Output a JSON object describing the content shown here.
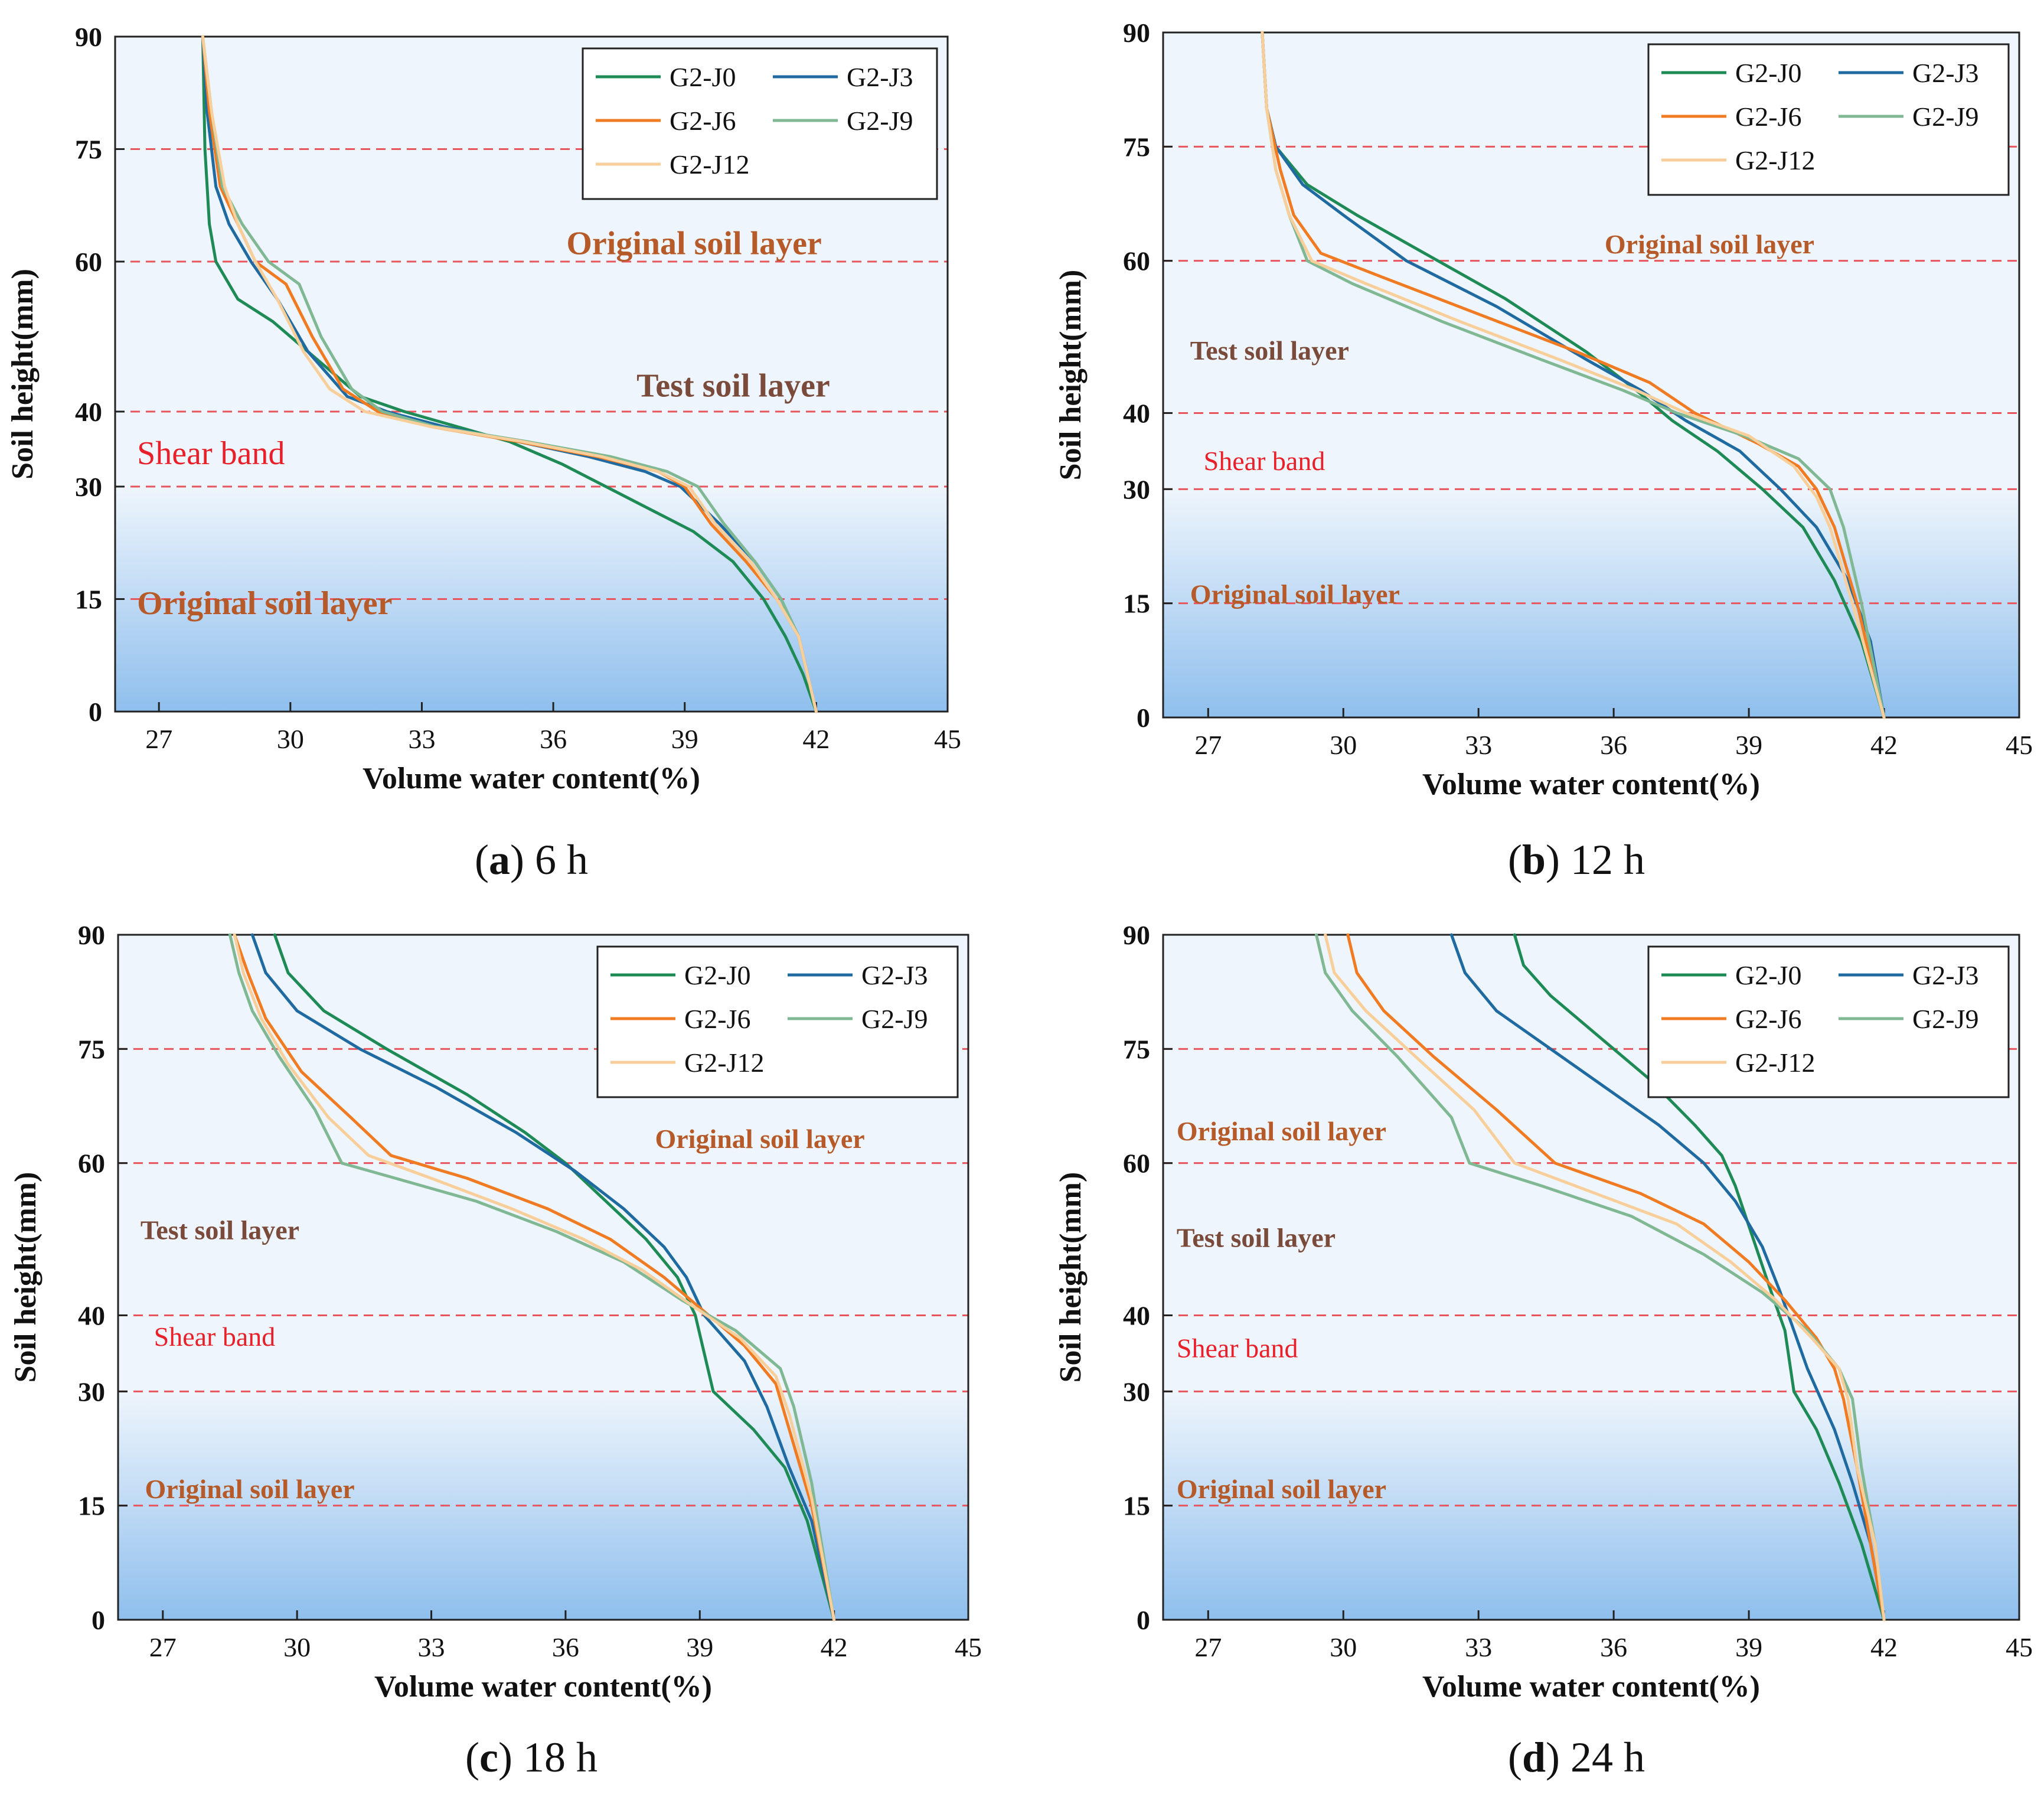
{
  "colors": {
    "G2-J0": "#1e8a56",
    "G2-J3": "#1f6aa0",
    "G2-J6": "#f07b22",
    "G2-J9": "#80b894",
    "G2-J12": "#f8cf9a",
    "band_top": "#eef5fc",
    "band_bottom": "#8fbfed",
    "guide_line": "#e8555c",
    "annotation_soil": "#b65a2a",
    "annotation_test": "#7a4a3a",
    "annotation_shear": "#e8202a"
  },
  "chart_data": [
    {
      "type": "line",
      "caption_letter": "a",
      "caption_text": " 6 h",
      "xlabel": "Volume water content(%)",
      "ylabel": "Soil height(mm)",
      "xlim": [
        26,
        45
      ],
      "ylim": [
        0,
        90
      ],
      "xticks": [
        27,
        30,
        33,
        36,
        39,
        42,
        45
      ],
      "yticks": [
        0,
        15,
        30,
        40,
        60,
        75,
        90
      ],
      "guide_lines_y": [
        15,
        30,
        40,
        60,
        75,
        90
      ],
      "legend": "top-right",
      "annotations": [
        {
          "text": "Original soil layer",
          "x": 36.3,
          "y": 61,
          "style": "soil",
          "size": "large"
        },
        {
          "text": "Test soil layer",
          "x": 37.9,
          "y": 42,
          "style": "test",
          "size": "large"
        },
        {
          "text": "Shear band",
          "x": 26.5,
          "y": 33,
          "style": "shear",
          "size": "large"
        },
        {
          "text": "Original soil layer",
          "x": 26.5,
          "y": 13,
          "style": "soil",
          "size": "large"
        }
      ],
      "series": [
        {
          "name": "G2-J0",
          "x": [
            28.0,
            28.05,
            28.15,
            28.3,
            28.8,
            29.6,
            30.6,
            31.6,
            32.6,
            33.8,
            35.0,
            36.2,
            37.2,
            38.2,
            39.2,
            40.1,
            40.8,
            41.3,
            41.7,
            42.0
          ],
          "y": [
            90,
            75,
            65,
            60,
            55,
            52,
            47,
            42,
            40,
            38,
            36,
            33,
            30,
            27,
            24,
            20,
            15,
            10,
            5,
            0
          ]
        },
        {
          "name": "G2-J3",
          "x": [
            28.0,
            28.1,
            28.3,
            28.6,
            29.1,
            29.7,
            30.4,
            31.3,
            32.2,
            33.5,
            35.2,
            36.8,
            38.1,
            38.9,
            39.8,
            40.6,
            41.2,
            41.6,
            42.0
          ],
          "y": [
            90,
            80,
            70,
            65,
            60,
            55,
            48,
            42,
            40,
            38,
            36,
            34,
            32,
            30,
            25,
            20,
            15,
            10,
            0
          ]
        },
        {
          "name": "G2-J6",
          "x": [
            28.0,
            28.15,
            28.4,
            28.8,
            29.2,
            29.9,
            30.5,
            31.2,
            32.0,
            33.2,
            35.2,
            37.0,
            38.4,
            39.0,
            39.6,
            40.4,
            41.1,
            41.6,
            42.0
          ],
          "y": [
            90,
            80,
            70,
            65,
            60,
            57,
            50,
            43,
            40,
            38,
            36,
            34,
            32,
            30,
            25,
            20,
            15,
            10,
            0
          ]
        },
        {
          "name": "G2-J9",
          "x": [
            28.0,
            28.2,
            28.45,
            28.9,
            29.5,
            30.2,
            30.7,
            31.4,
            32.1,
            33.3,
            35.4,
            37.3,
            38.6,
            39.3,
            39.9,
            40.6,
            41.2,
            41.6,
            42.0
          ],
          "y": [
            90,
            80,
            70,
            65,
            60,
            57,
            50,
            43,
            40,
            38,
            36,
            34,
            32,
            30,
            25,
            20,
            15,
            10,
            0
          ]
        },
        {
          "name": "G2-J12",
          "x": [
            28.0,
            28.2,
            28.5,
            28.8,
            29.2,
            29.7,
            30.3,
            30.9,
            31.7,
            33.2,
            35.3,
            37.1,
            38.4,
            39.1,
            39.7,
            40.5,
            41.1,
            41.6,
            42.0
          ],
          "y": [
            90,
            80,
            70,
            65,
            60,
            55,
            48,
            43,
            40,
            38,
            36,
            34,
            32,
            30,
            25,
            20,
            15,
            10,
            0
          ]
        }
      ]
    },
    {
      "type": "line",
      "caption_letter": "b",
      "caption_text": " 12 h",
      "xlabel": "Volume water content(%)",
      "ylabel": "Soil height(mm)",
      "xlim": [
        26,
        45
      ],
      "ylim": [
        0,
        90
      ],
      "xticks": [
        27,
        30,
        33,
        36,
        39,
        42,
        45
      ],
      "yticks": [
        0,
        15,
        30,
        40,
        60,
        75,
        90
      ],
      "guide_lines_y": [
        15,
        30,
        40,
        60,
        75,
        90
      ],
      "legend": "top-right",
      "annotations": [
        {
          "text": "Original soil layer",
          "x": 35.8,
          "y": 61,
          "style": "soil",
          "size": "small"
        },
        {
          "text": "Test soil layer",
          "x": 26.6,
          "y": 47,
          "style": "test",
          "size": "small"
        },
        {
          "text": "Shear band",
          "x": 26.9,
          "y": 32.5,
          "style": "shear",
          "size": "small"
        },
        {
          "text": "Original soil layer",
          "x": 26.6,
          "y": 15,
          "style": "soil",
          "size": "small"
        }
      ],
      "series": [
        {
          "name": "G2-J0",
          "x": [
            28.2,
            28.3,
            28.5,
            29.2,
            30.3,
            31.8,
            33.6,
            35.4,
            36.5,
            37.3,
            38.3,
            39.3,
            40.2,
            40.9,
            41.5,
            42.0
          ],
          "y": [
            90,
            80,
            75,
            70,
            66,
            61,
            55,
            48,
            43,
            39,
            35,
            30,
            25,
            18,
            10,
            0
          ]
        },
        {
          "name": "G2-J3",
          "x": [
            28.2,
            28.3,
            28.5,
            29.1,
            30.0,
            31.4,
            33.4,
            35.4,
            36.6,
            37.6,
            38.8,
            39.7,
            40.5,
            41.2,
            41.7,
            42.0
          ],
          "y": [
            90,
            80,
            75,
            70,
            66,
            60,
            54,
            47,
            43,
            39,
            35,
            30,
            25,
            18,
            10,
            0
          ]
        },
        {
          "name": "G2-J6",
          "x": [
            28.2,
            28.3,
            28.6,
            28.9,
            29.5,
            30.8,
            33.0,
            35.2,
            36.8,
            37.8,
            39.2,
            40.1,
            40.5,
            40.9,
            41.4,
            42.0
          ],
          "y": [
            90,
            80,
            72,
            66,
            61,
            58,
            53,
            48,
            44,
            40,
            36,
            33,
            30,
            25,
            15,
            0
          ]
        },
        {
          "name": "G2-J9",
          "x": [
            28.2,
            28.3,
            28.5,
            28.8,
            29.2,
            30.2,
            32.2,
            34.4,
            36.2,
            37.4,
            38.9,
            40.1,
            40.8,
            41.1,
            41.5,
            42.0
          ],
          "y": [
            90,
            80,
            72,
            66,
            60,
            57,
            52,
            47,
            43,
            40,
            37,
            34,
            30,
            25,
            15,
            0
          ]
        },
        {
          "name": "G2-J12",
          "x": [
            28.2,
            28.3,
            28.5,
            28.8,
            29.3,
            30.5,
            32.6,
            34.8,
            36.5,
            37.6,
            39.0,
            40.0,
            40.5,
            40.8,
            41.3,
            42.0
          ],
          "y": [
            90,
            80,
            72,
            66,
            60,
            57,
            52,
            47,
            43,
            40,
            37,
            33,
            29,
            25,
            15,
            0
          ]
        }
      ]
    },
    {
      "type": "line",
      "caption_letter": "c",
      "caption_text": " 18 h",
      "xlabel": "Volume water content(%)",
      "ylabel": "Soil height(mm)",
      "xlim": [
        26,
        45
      ],
      "ylim": [
        0,
        90
      ],
      "xticks": [
        27,
        30,
        33,
        36,
        39,
        42,
        45
      ],
      "yticks": [
        0,
        15,
        30,
        40,
        60,
        75,
        90
      ],
      "guide_lines_y": [
        15,
        30,
        40,
        60,
        75,
        90
      ],
      "legend": "top-right",
      "annotations": [
        {
          "text": "Original soil layer",
          "x": 38.0,
          "y": 62,
          "style": "soil",
          "size": "small"
        },
        {
          "text": "Test soil layer",
          "x": 26.5,
          "y": 50,
          "style": "test",
          "size": "small"
        },
        {
          "text": "Shear band",
          "x": 26.8,
          "y": 36,
          "style": "shear",
          "size": "small"
        },
        {
          "text": "Original soil layer",
          "x": 26.6,
          "y": 16,
          "style": "soil",
          "size": "small"
        }
      ],
      "series": [
        {
          "name": "G2-J0",
          "x": [
            29.5,
            29.8,
            30.6,
            32.0,
            33.8,
            35.1,
            36.0,
            36.9,
            37.8,
            38.5,
            38.9,
            39.3,
            40.2,
            40.9,
            41.4,
            42.0
          ],
          "y": [
            90,
            85,
            80,
            75,
            69,
            64,
            60,
            55,
            50,
            45,
            40,
            30,
            25,
            20,
            13,
            0
          ]
        },
        {
          "name": "G2-J3",
          "x": [
            29.0,
            29.3,
            30.0,
            31.4,
            33.1,
            34.9,
            36.2,
            37.3,
            38.2,
            38.7,
            39.1,
            40.0,
            40.5,
            41.0,
            41.5,
            42.0
          ],
          "y": [
            90,
            85,
            80,
            75,
            70,
            64,
            59,
            54,
            49,
            45,
            40,
            34,
            28,
            20,
            13,
            0
          ]
        },
        {
          "name": "G2-J6",
          "x": [
            28.6,
            28.9,
            29.3,
            30.1,
            31.2,
            32.1,
            33.8,
            35.6,
            37.0,
            38.2,
            39.2,
            40.0,
            40.7,
            41.0,
            41.5,
            42.0
          ],
          "y": [
            90,
            85,
            79,
            72,
            66,
            61,
            58,
            54,
            50,
            45,
            40,
            36,
            31,
            25,
            15,
            0
          ]
        },
        {
          "name": "G2-J9",
          "x": [
            28.5,
            28.7,
            29.0,
            29.6,
            30.4,
            31.0,
            32.2,
            34.0,
            35.8,
            37.3,
            38.6,
            39.8,
            40.8,
            41.1,
            41.5,
            42.0
          ],
          "y": [
            90,
            85,
            80,
            74,
            67,
            60,
            58,
            55,
            51,
            47,
            42,
            38,
            33,
            28,
            18,
            0
          ]
        },
        {
          "name": "G2-J12",
          "x": [
            28.6,
            28.8,
            29.2,
            29.8,
            30.7,
            31.6,
            33.0,
            34.8,
            36.4,
            37.7,
            38.9,
            39.9,
            40.7,
            41.0,
            41.5,
            42.0
          ],
          "y": [
            90,
            85,
            79,
            73,
            66,
            61,
            58,
            54,
            50,
            46,
            41,
            37,
            32,
            27,
            16,
            0
          ]
        }
      ]
    },
    {
      "type": "line",
      "caption_letter": "d",
      "caption_text": " 24 h",
      "xlabel": "Volume water content(%)",
      "ylabel": "Soil height(mm)",
      "xlim": [
        26,
        45
      ],
      "ylim": [
        0,
        90
      ],
      "xticks": [
        27,
        30,
        33,
        36,
        39,
        42,
        45
      ],
      "yticks": [
        0,
        15,
        30,
        40,
        60,
        75,
        90
      ],
      "guide_lines_y": [
        15,
        30,
        40,
        60,
        75,
        90
      ],
      "legend": "top-right",
      "annotations": [
        {
          "text": "Original soil layer",
          "x": 26.3,
          "y": 63,
          "style": "soil",
          "size": "small"
        },
        {
          "text": "Test soil layer",
          "x": 26.3,
          "y": 49,
          "style": "test",
          "size": "small"
        },
        {
          "text": "Shear band",
          "x": 26.3,
          "y": 34.5,
          "style": "shear",
          "size": "small"
        },
        {
          "text": "Original soil layer",
          "x": 26.3,
          "y": 16,
          "style": "soil",
          "size": "small"
        }
      ],
      "series": [
        {
          "name": "G2-J0",
          "x": [
            33.8,
            34.0,
            34.6,
            35.6,
            36.8,
            37.8,
            38.4,
            38.7,
            39.1,
            39.5,
            39.8,
            40.0,
            40.5,
            41.0,
            41.5,
            42.0
          ],
          "y": [
            90,
            86,
            82,
            77,
            71,
            65,
            61,
            57,
            50,
            43,
            38,
            30,
            25,
            18,
            10,
            0
          ]
        },
        {
          "name": "G2-J3",
          "x": [
            32.4,
            32.7,
            33.4,
            34.6,
            35.8,
            37.0,
            38.0,
            38.7,
            39.3,
            39.7,
            40.0,
            40.3,
            40.9,
            41.3,
            41.7,
            42.0
          ],
          "y": [
            90,
            85,
            80,
            75,
            70,
            65,
            60,
            55,
            49,
            43,
            38,
            33,
            25,
            18,
            10,
            0
          ]
        },
        {
          "name": "G2-J6",
          "x": [
            30.1,
            30.3,
            30.9,
            32.0,
            33.4,
            34.7,
            36.6,
            38.0,
            39.0,
            39.8,
            40.5,
            40.9,
            41.1,
            41.4,
            41.7,
            42.0
          ],
          "y": [
            90,
            85,
            80,
            74,
            67,
            60,
            56,
            52,
            47,
            42,
            37,
            33,
            29,
            20,
            10,
            0
          ]
        },
        {
          "name": "G2-J9",
          "x": [
            29.4,
            29.6,
            30.2,
            31.2,
            32.4,
            32.8,
            34.4,
            36.4,
            38.0,
            39.3,
            40.3,
            41.0,
            41.3,
            41.5,
            41.8,
            42.0
          ],
          "y": [
            90,
            85,
            80,
            74,
            66,
            60,
            57,
            53,
            48,
            43,
            38,
            33,
            29,
            20,
            10,
            0
          ]
        },
        {
          "name": "G2-J12",
          "x": [
            29.6,
            29.8,
            30.5,
            31.6,
            32.9,
            33.8,
            35.6,
            37.4,
            38.6,
            39.6,
            40.4,
            41.0,
            41.2,
            41.4,
            41.8,
            42.0
          ],
          "y": [
            90,
            85,
            80,
            74,
            67,
            60,
            56,
            52,
            47,
            42,
            37,
            33,
            29,
            20,
            10,
            0
          ]
        }
      ]
    }
  ]
}
